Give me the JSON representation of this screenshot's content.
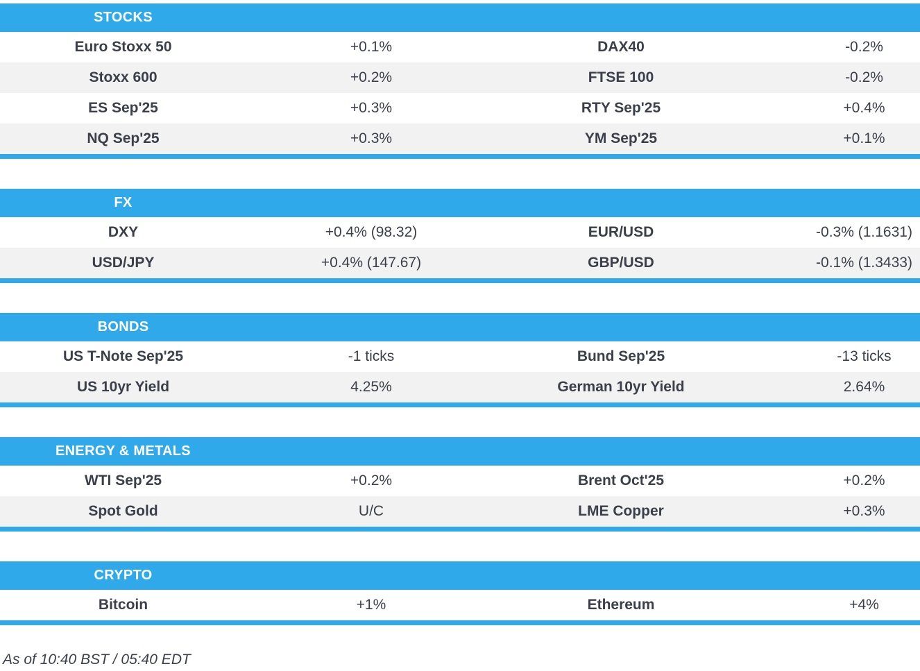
{
  "colors": {
    "accent_blue": "#2FA9E9",
    "row_alt_gray": "#F2F2F2",
    "text": "#3A3F4A",
    "header_text": "#FFFFFF"
  },
  "footer": {
    "as_of": "As of 10:40 BST / 05:40 EDT"
  },
  "sections": [
    {
      "title": "STOCKS",
      "rows": [
        {
          "left_label": "Euro Stoxx 50",
          "left_value": "+0.1%",
          "right_label": "DAX40",
          "right_value": "-0.2%"
        },
        {
          "left_label": "Stoxx 600",
          "left_value": "+0.2%",
          "right_label": "FTSE 100",
          "right_value": "-0.2%"
        },
        {
          "left_label": "ES Sep'25",
          "left_value": "+0.3%",
          "right_label": "RTY Sep'25",
          "right_value": "+0.4%"
        },
        {
          "left_label": "NQ Sep'25",
          "left_value": "+0.3%",
          "right_label": "YM Sep'25",
          "right_value": "+0.1%"
        }
      ]
    },
    {
      "title": "FX",
      "rows": [
        {
          "left_label": "DXY",
          "left_value": "+0.4% (98.32)",
          "right_label": "EUR/USD",
          "right_value": "-0.3% (1.1631)"
        },
        {
          "left_label": "USD/JPY",
          "left_value": "+0.4% (147.67)",
          "right_label": "GBP/USD",
          "right_value": "-0.1% (1.3433)"
        }
      ]
    },
    {
      "title": "BONDS",
      "rows": [
        {
          "left_label": "US T-Note Sep'25",
          "left_value": "-1 ticks",
          "right_label": "Bund Sep'25",
          "right_value": "-13 ticks"
        },
        {
          "left_label": "US 10yr Yield",
          "left_value": "4.25%",
          "right_label": "German 10yr Yield",
          "right_value": "2.64%"
        }
      ]
    },
    {
      "title": "ENERGY & METALS",
      "rows": [
        {
          "left_label": "WTI Sep'25",
          "left_value": "+0.2%",
          "right_label": "Brent Oct'25",
          "right_value": "+0.2%"
        },
        {
          "left_label": "Spot Gold",
          "left_value": "U/C",
          "right_label": "LME Copper",
          "right_value": "+0.3%"
        }
      ]
    },
    {
      "title": "CRYPTO",
      "rows": [
        {
          "left_label": "Bitcoin",
          "left_value": "+1%",
          "right_label": "Ethereum",
          "right_value": "+4%"
        }
      ]
    }
  ]
}
